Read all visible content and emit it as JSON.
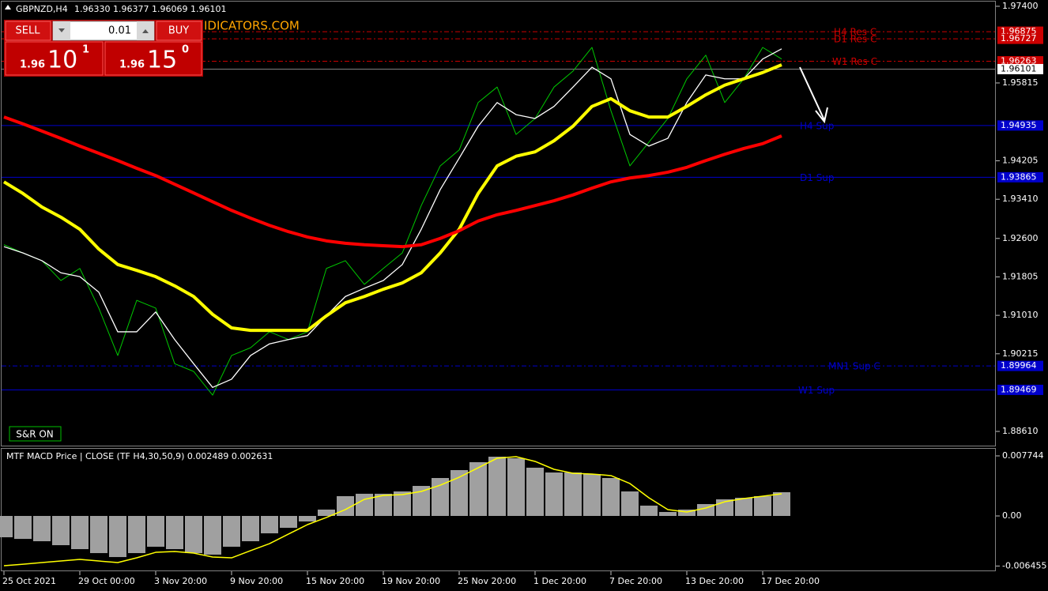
{
  "header": {
    "symbol": "GBPNZD,H4",
    "ohlc": "1.96330 1.96377 1.96069 1.96101",
    "watermark": "IDICATORS.COM"
  },
  "trade": {
    "sell": "SELL",
    "lot": "0.01",
    "buy": "BUY",
    "bid": {
      "prefix": "1.96",
      "big": "10",
      "small": "1"
    },
    "ask": {
      "prefix": "1.96",
      "big": "15",
      "small": "0"
    },
    "sr_button": "S&R ON"
  },
  "chart_data": [
    {
      "type": "line",
      "categories": [
        "25 Oct 2021",
        null,
        null,
        null,
        "29 Oct 00:00",
        null,
        null,
        null,
        "3 Nov 20:00",
        null,
        null,
        null,
        "9 Nov 20:00",
        null,
        null,
        null,
        "15 Nov 20:00",
        null,
        null,
        null,
        "19 Nov 20:00",
        null,
        null,
        null,
        "25 Nov 20:00",
        null,
        null,
        null,
        "1 Dec 20:00",
        null,
        null,
        null,
        "7 Dec 20:00",
        null,
        null,
        null,
        "13 Dec 20:00",
        null,
        null,
        null,
        "17 Dec 20:00",
        null
      ],
      "ylim": [
        1.883,
        1.9753
      ],
      "yticks": [
        {
          "value": 1.974,
          "label": "1.97400"
        },
        1.95815,
        1.94205,
        {
          "value": 1.9341,
          "label": "1.93410"
        },
        {
          "value": 1.926,
          "label": "1.92600"
        },
        1.91805,
        {
          "value": 1.9101,
          "label": "1.91010"
        },
        1.90215,
        {
          "value": 1.8861,
          "label": "1.88610"
        }
      ],
      "grid": false,
      "series": [
        {
          "color": "#00c800",
          "width": 1,
          "values": [
            1.9247,
            1.923,
            1.9214,
            1.9173,
            1.9198,
            1.9116,
            1.9018,
            1.9132,
            1.9116,
            1.9001,
            1.8985,
            1.8936,
            1.9018,
            1.9034,
            1.9067,
            1.9051,
            1.9067,
            1.9198,
            1.9214,
            1.9165,
            1.9198,
            1.923,
            1.9328,
            1.941,
            1.9443,
            1.9541,
            1.9573,
            1.9475,
            1.9508,
            1.9573,
            1.9606,
            1.9655,
            1.9524,
            1.941,
            1.9459,
            1.9508,
            1.959,
            1.9639,
            1.9541,
            1.959,
            1.9655,
            1.9631
          ]
        },
        {
          "color": "#ffffff",
          "width": 1.3,
          "values": [
            1.9243,
            1.923,
            1.9214,
            1.9189,
            1.9181,
            1.9149,
            1.9067,
            1.9067,
            1.9108,
            1.9051,
            1.9001,
            1.8952,
            1.8969,
            1.9018,
            1.9042,
            1.9051,
            1.9059,
            1.91,
            1.914,
            1.9157,
            1.9173,
            1.9206,
            1.9279,
            1.9361,
            1.9426,
            1.9492,
            1.9541,
            1.9516,
            1.9508,
            1.9533,
            1.9573,
            1.9614,
            1.959,
            1.9475,
            1.9451,
            1.9467,
            1.9541,
            1.9598,
            1.959,
            1.959,
            1.9631,
            1.9652
          ]
        },
        {
          "color": "#ffff00",
          "width": 4,
          "values": [
            1.9377,
            1.9353,
            1.9325,
            1.9304,
            1.9279,
            1.9238,
            1.9206,
            1.9194,
            1.9181,
            1.9162,
            1.914,
            1.9103,
            1.9075,
            1.907,
            1.907,
            1.907,
            1.907,
            1.91,
            1.9127,
            1.914,
            1.9155,
            1.9168,
            1.9189,
            1.923,
            1.9279,
            1.9353,
            1.941,
            1.943,
            1.9439,
            1.9462,
            1.9492,
            1.9533,
            1.9549,
            1.9524,
            1.9511,
            1.9511,
            1.9533,
            1.9557,
            1.9577,
            1.959,
            1.9603,
            1.9619
          ]
        },
        {
          "color": "#ff0000",
          "width": 4,
          "values": [
            1.9511,
            1.9497,
            1.9482,
            1.9467,
            1.9451,
            1.9436,
            1.9421,
            1.9405,
            1.939,
            1.9372,
            1.9354,
            1.9336,
            1.9318,
            1.9302,
            1.9287,
            1.9274,
            1.9263,
            1.9255,
            1.925,
            1.9247,
            1.9245,
            1.9243,
            1.9247,
            1.926,
            1.9276,
            1.9296,
            1.9309,
            1.9318,
            1.9328,
            1.9338,
            1.935,
            1.9364,
            1.9377,
            1.9385,
            1.939,
            1.9397,
            1.9407,
            1.9421,
            1.9434,
            1.9446,
            1.9456,
            1.9472
          ]
        }
      ],
      "levels": [
        {
          "name": "H4 Res C",
          "value": 1.96875,
          "color": "#cc0000",
          "dash": true
        },
        {
          "name": "D1 Res C",
          "value": 1.96727,
          "color": "#cc0000",
          "dash": true
        },
        {
          "name": "W1 Res C",
          "value": 1.96263,
          "color": "#cc0000",
          "dash": true
        },
        {
          "value": 1.96101,
          "color": "#ffffff",
          "dash": false
        },
        {
          "name": "H4 Sup",
          "value": 1.94935,
          "color": "#0000cc",
          "dash": false
        },
        {
          "name": "D1 Sup",
          "value": 1.93865,
          "color": "#0000cc",
          "dash": false
        },
        {
          "name": "MN1 Sup C",
          "value": 1.89964,
          "color": "#0000cc",
          "dash": true
        },
        {
          "name": "W1 Sup",
          "value": 1.89469,
          "color": "#0000cc",
          "dash": false
        }
      ]
    },
    {
      "type": "macd",
      "title": "MTF MACD Price | CLOSE  (TF H4,30,50,9) 0.002489 0.002631",
      "ylim": [
        -0.00713,
        0.00876
      ],
      "yticks": [
        0.007744,
        {
          "value": 0,
          "label": "0.00"
        },
        -0.006455
      ],
      "series": [
        {
          "type": "bar",
          "color": "#a0a0a0",
          "values": [
            -0.00275,
            -0.00296,
            -0.00326,
            -0.00377,
            -0.00428,
            -0.00479,
            -0.0053,
            -0.00479,
            -0.00397,
            -0.00428,
            -0.00479,
            -0.00499,
            -0.00397,
            -0.00326,
            -0.00224,
            -0.00153,
            -0.00071,
            0.00082,
            0.00255,
            0.00286,
            0.00286,
            0.00316,
            0.00387,
            0.00489,
            0.00591,
            0.00693,
            0.00764,
            0.00744,
            0.00622,
            0.0056,
            0.0056,
            0.0054,
            0.00489,
            0.00316,
            0.00133,
            0.00051,
            0.00082,
            0.00153,
            0.00214,
            0.00234,
            0.00255,
            0.00306
          ]
        },
        {
          "type": "line",
          "color": "#ffff00",
          "values": [
            -0.00642,
            -0.00622,
            -0.00601,
            -0.00581,
            -0.0056,
            -0.00581,
            -0.00601,
            -0.0054,
            -0.00469,
            -0.00458,
            -0.00479,
            -0.0053,
            -0.0054,
            -0.00448,
            -0.00357,
            -0.00234,
            -0.00112,
            -0.0002,
            0.00082,
            0.00214,
            0.00265,
            0.00275,
            0.00316,
            0.00397,
            0.00499,
            0.00621,
            0.00744,
            0.00764,
            0.00703,
            0.00601,
            0.0055,
            0.0054,
            0.0052,
            0.00418,
            0.00234,
            0.00082,
            0.00051,
            0.00102,
            0.00183,
            0.00224,
            0.00255,
            0.00285
          ]
        }
      ]
    }
  ]
}
